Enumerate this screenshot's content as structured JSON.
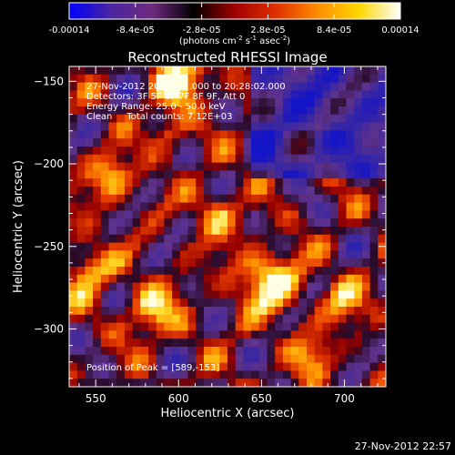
{
  "chart_data": {
    "type": "heatmap",
    "title": "Reconstructed RHESSI Image",
    "xlabel": "Heliocentric X (arcsec)",
    "ylabel": "Heliocentric Y (arcsec)",
    "xlim": [
      534,
      725
    ],
    "ylim": [
      -335,
      -141
    ],
    "x_ticks": [
      550,
      600,
      650,
      700
    ],
    "y_ticks": [
      -300,
      -250,
      -200,
      -150
    ],
    "colorbar": {
      "tick_labels": [
        "-0.00014",
        "-8.4e-05",
        "-2.8e-05",
        "2.8e-05",
        "8.4e-05",
        "0.00014"
      ],
      "tick_values": [
        -0.00014,
        -8.4e-05,
        -2.8e-05,
        2.8e-05,
        8.4e-05,
        0.00014
      ],
      "unit_label_parts": [
        "(photons cm",
        "-2",
        " s",
        "-1",
        " asec",
        "-2",
        ")"
      ],
      "range": [
        -0.00014,
        0.00014
      ],
      "colormap_stops": [
        "#0000ff",
        "#4a24a0",
        "#702a80",
        "#000000",
        "#a00000",
        "#e03000",
        "#ff8c00",
        "#ffd700",
        "#ffffff"
      ]
    },
    "annotations": {
      "line1": "27-Nov-2012 20:22:02.000 to 20:28:02.000",
      "line2": "Detectors: 3F 5F 6F 7F 8F 9F, Att 0",
      "line3": "Energy Range: 25.0 - 50.0 keV",
      "line4": "Clean     Total counts: 7.12E+03",
      "peak": "Position of Peak = [589,-153]"
    },
    "peak_position": [
      589,
      -153
    ],
    "grid": false
  },
  "timestamp": "27-Nov-2012 22:57"
}
